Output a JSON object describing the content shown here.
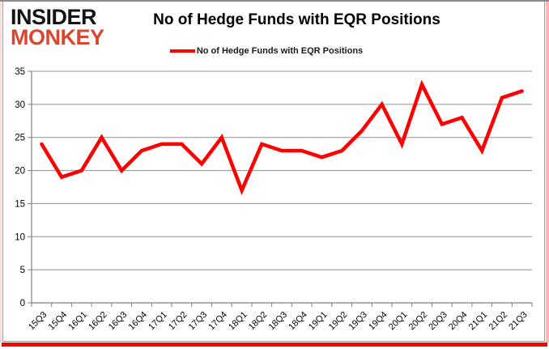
{
  "logo": {
    "line1": "INSIDER",
    "line2": "MONKEY"
  },
  "header": {
    "title": "No of Hedge Funds with EQR Positions"
  },
  "legend": {
    "label": "No of Hedge Funds with EQR Positions"
  },
  "colors": {
    "line": "#ff0000",
    "logo_red": "#d9472e",
    "grid": "#8f8f8f",
    "axis": "#808080",
    "tick_label": "#000000",
    "accent_bottom_bar": "#ff0000"
  },
  "chart_data": {
    "type": "line",
    "title": "No of Hedge Funds with EQR Positions",
    "categories": [
      "15Q3",
      "15Q4",
      "16Q1",
      "16Q2",
      "16Q3",
      "16Q4",
      "17Q1",
      "17Q2",
      "17Q3",
      "17Q4",
      "18Q1",
      "18Q2",
      "18Q3",
      "18Q4",
      "19Q1",
      "19Q2",
      "19Q3",
      "19Q4",
      "20Q1",
      "20Q2",
      "20Q3",
      "20Q4",
      "21Q1",
      "21Q2",
      "21Q3"
    ],
    "series": [
      {
        "name": "No of Hedge Funds with EQR Positions",
        "color": "#ff0000",
        "values": [
          24,
          19,
          20,
          25,
          20,
          23,
          24,
          24,
          21,
          25,
          17,
          24,
          23,
          23,
          22,
          23,
          26,
          30,
          24,
          33,
          27,
          28,
          23,
          31,
          32
        ]
      }
    ],
    "xlabel": "",
    "ylabel": "",
    "ylim": [
      0,
      35
    ],
    "yticks": [
      0,
      5,
      10,
      15,
      20,
      25,
      30,
      35
    ],
    "grid": true,
    "legend_position": "top-center",
    "x_label_rotation": -45
  }
}
